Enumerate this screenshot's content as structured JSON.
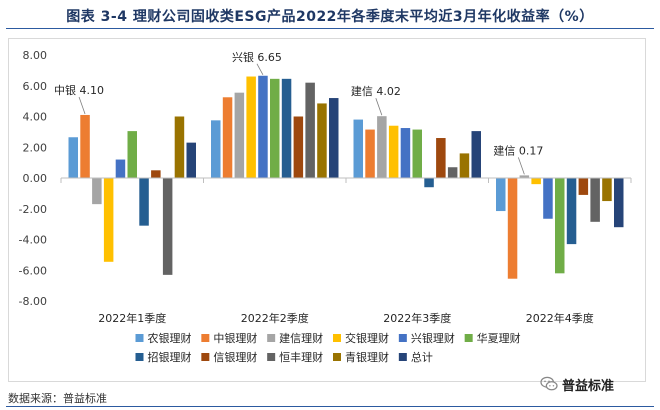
{
  "title": "图表 3-4   理财公司固收类ESG产品2022年各季度末平均近3月年化收益率（%）",
  "source": "数据来源：普益标准",
  "watermark": "普益标准",
  "chart_data": {
    "type": "bar",
    "title": "",
    "xlabel": "",
    "ylabel": "",
    "ylim": [
      -8,
      8
    ],
    "yticks": [
      "-8.00",
      "-6.00",
      "-4.00",
      "-2.00",
      "0.00",
      "2.00",
      "4.00",
      "6.00",
      "8.00"
    ],
    "categories": [
      "2022年1季度",
      "2022年2季度",
      "2022年3季度",
      "2022年4季度"
    ],
    "legend_position": "bottom",
    "series": [
      {
        "name": "农银理财",
        "color": "#5b9bd5",
        "values": [
          2.65,
          3.75,
          3.8,
          -2.15
        ]
      },
      {
        "name": "中银理财",
        "color": "#ed7d31",
        "values": [
          4.1,
          5.25,
          3.15,
          -6.55
        ]
      },
      {
        "name": "建信理财",
        "color": "#a5a5a5",
        "values": [
          -1.7,
          5.55,
          4.02,
          0.17
        ]
      },
      {
        "name": "交银理财",
        "color": "#ffc000",
        "values": [
          -5.45,
          6.6,
          3.4,
          -0.4
        ]
      },
      {
        "name": "兴银理财",
        "color": "#4472c4",
        "values": [
          1.2,
          6.65,
          3.25,
          -2.65
        ]
      },
      {
        "name": "华夏理财",
        "color": "#70ad47",
        "values": [
          3.05,
          6.45,
          3.15,
          -6.2
        ]
      },
      {
        "name": "招银理财",
        "color": "#255e91",
        "values": [
          -3.1,
          6.45,
          -0.6,
          -4.3
        ]
      },
      {
        "name": "信银理财",
        "color": "#9e480e",
        "values": [
          0.5,
          4.0,
          2.6,
          -1.1
        ]
      },
      {
        "name": "恒丰理财",
        "color": "#636363",
        "values": [
          -6.3,
          6.2,
          0.7,
          -2.85
        ]
      },
      {
        "name": "青银理财",
        "color": "#997300",
        "values": [
          4.0,
          4.85,
          1.6,
          -1.5
        ]
      },
      {
        "name": "总计",
        "color": "#264478",
        "values": [
          2.3,
          5.2,
          3.05,
          -3.2
        ]
      }
    ],
    "annotations": [
      {
        "text": "中银 4.10",
        "category": 0,
        "series": 1
      },
      {
        "text": "兴银 6.65",
        "category": 1,
        "series": 4
      },
      {
        "text": "建信 4.02",
        "category": 2,
        "series": 2
      },
      {
        "text": "建信 0.17",
        "category": 3,
        "series": 2
      }
    ]
  }
}
